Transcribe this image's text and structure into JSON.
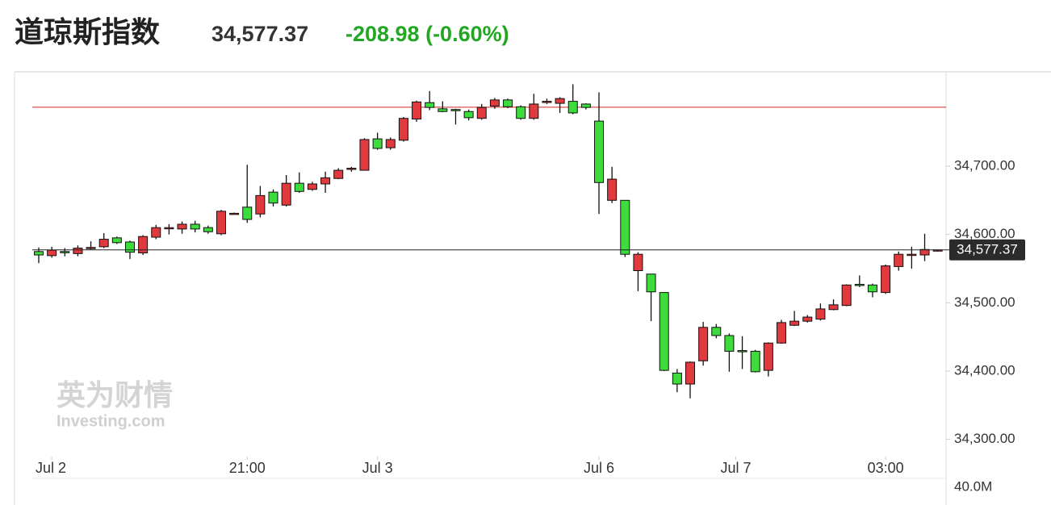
{
  "chart_data": {
    "type": "candlestick",
    "title": "道琼斯指数",
    "price": "34,577.37",
    "change": "-208.98 (-0.60%)",
    "watermark": [
      "英为财情",
      "Investing.com"
    ],
    "up_color": "#e0393e",
    "down_color": "#3ddc3d",
    "change_color": "#22a722",
    "open": [
      34575,
      34569,
      34575,
      34572,
      34580,
      34582,
      34595,
      34589,
      34573,
      34596,
      34609,
      34608,
      34615,
      34610,
      34601,
      34630,
      34640,
      34630,
      34662,
      34643,
      34675,
      34666,
      34674,
      34682,
      34696,
      34694,
      34740,
      34727,
      34738,
      34769,
      34793,
      34784,
      34783,
      34780,
      34770,
      34788,
      34797,
      34787,
      34770,
      34794,
      34792,
      34795,
      34791,
      34766,
      34650,
      34650,
      34547,
      34542,
      34515,
      34397,
      34381,
      34415,
      34464,
      34452,
      34430,
      34429,
      34401,
      34441,
      34467,
      34473,
      34476,
      34490,
      34496,
      34527,
      34526,
      34515,
      34553,
      34570,
      34570,
      34576
    ],
    "high": [
      34581,
      34582,
      34580,
      34584,
      34590,
      34602,
      34597,
      34591,
      34599,
      34614,
      34615,
      34619,
      34620,
      34613,
      34636,
      34632,
      34702,
      34671,
      34666,
      34687,
      34691,
      34677,
      34692,
      34697,
      34699,
      34741,
      34749,
      34742,
      34772,
      34796,
      34810,
      34795,
      34784,
      34783,
      34791,
      34800,
      34799,
      34789,
      34806,
      34799,
      34801,
      34820,
      34792,
      34808,
      34699,
      34650,
      34574,
      34542,
      34515,
      34403,
      34414,
      34472,
      34469,
      34455,
      34451,
      34431,
      34442,
      34475,
      34488,
      34482,
      34499,
      34505,
      34527,
      34540,
      34528,
      34556,
      34575,
      34582,
      34601,
      34578
    ],
    "low": [
      34558,
      34566,
      34568,
      34568,
      34578,
      34580,
      34586,
      34564,
      34570,
      34593,
      34600,
      34601,
      34603,
      34601,
      34599,
      34629,
      34617,
      34625,
      34641,
      34641,
      34661,
      34664,
      34661,
      34681,
      34692,
      34694,
      34724,
      34724,
      34736,
      34765,
      34782,
      34779,
      34761,
      34767,
      34768,
      34784,
      34785,
      34768,
      34768,
      34791,
      34778,
      34776,
      34783,
      34630,
      34646,
      34567,
      34517,
      34473,
      34400,
      34369,
      34360,
      34408,
      34448,
      34399,
      34403,
      34398,
      34392,
      34440,
      34466,
      34471,
      34474,
      34489,
      34495,
      34523,
      34508,
      34513,
      34547,
      34550,
      34561,
      34575
    ],
    "close": [
      34570,
      34577,
      34574,
      34580,
      34581,
      34593,
      34588,
      34574,
      34597,
      34610,
      34610,
      34615,
      34608,
      34604,
      34634,
      34631,
      34622,
      34657,
      34646,
      34675,
      34663,
      34674,
      34683,
      34694,
      34697,
      34739,
      34726,
      34739,
      34770,
      34794,
      34786,
      34780,
      34782,
      34771,
      34786,
      34797,
      34787,
      34770,
      34791,
      34795,
      34799,
      34778,
      34786,
      34676,
      34681,
      34571,
      34571,
      34516,
      34401,
      34381,
      34413,
      34464,
      34452,
      34429,
      34429,
      34399,
      34441,
      34471,
      34473,
      34479,
      34491,
      34497,
      34526,
      34526,
      34516,
      34554,
      34571,
      34571,
      34578,
      34577.37
    ],
    "ylim": [
      34296,
      34837
    ],
    "yticks": [
      {
        "value": 34700,
        "label": "34,700.00"
      },
      {
        "value": 34600,
        "label": "34,600.00"
      },
      {
        "value": 34500,
        "label": "34,500.00"
      },
      {
        "value": 34400,
        "label": "34,400.00"
      },
      {
        "value": 34300,
        "label": "34,300.00"
      }
    ],
    "xticks": [
      {
        "value": 1,
        "label": "Jul 2"
      },
      {
        "value": 16,
        "label": "21:00"
      },
      {
        "value": 26,
        "label": "Jul 3"
      },
      {
        "value": 43,
        "label": "Jul 6"
      },
      {
        "value": 53.5,
        "label": "Jul 7"
      },
      {
        "value": 65,
        "label": "03:00"
      }
    ],
    "price_line": {
      "value": 34577.37,
      "label": "34,577.37"
    },
    "reference_line": {
      "value": 34786.35,
      "color": "#d9534f"
    },
    "volume_ticks": [
      {
        "value": 40000000,
        "label": "40.0M"
      }
    ]
  }
}
